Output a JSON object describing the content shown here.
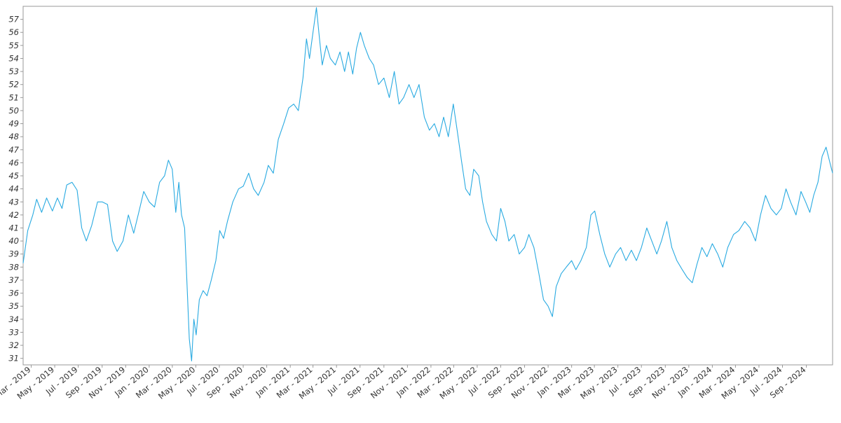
{
  "chart_data": {
    "type": "line",
    "title": "",
    "xlabel": "",
    "ylabel": "",
    "x_range": [
      "2019-02-08",
      "2024-11-08"
    ],
    "ylim": [
      30.5,
      58.0
    ],
    "y_ticks": [
      31,
      32,
      33,
      34,
      35,
      36,
      37,
      38,
      39,
      40,
      41,
      42,
      43,
      44,
      45,
      46,
      47,
      48,
      49,
      50,
      51,
      52,
      53,
      54,
      55,
      56,
      57
    ],
    "x_ticks": [
      {
        "date": "2019-03-01",
        "label": "Mar - 2019"
      },
      {
        "date": "2019-05-01",
        "label": "May - 2019"
      },
      {
        "date": "2019-07-01",
        "label": "Jul - 2019"
      },
      {
        "date": "2019-09-01",
        "label": "Sep - 2019"
      },
      {
        "date": "2019-11-01",
        "label": "Nov - 2019"
      },
      {
        "date": "2020-01-01",
        "label": "Jan - 2020"
      },
      {
        "date": "2020-03-01",
        "label": "Mar - 2020"
      },
      {
        "date": "2020-05-01",
        "label": "May - 2020"
      },
      {
        "date": "2020-07-01",
        "label": "Jul - 2020"
      },
      {
        "date": "2020-09-01",
        "label": "Sep - 2020"
      },
      {
        "date": "2020-11-01",
        "label": "Nov - 2020"
      },
      {
        "date": "2021-01-01",
        "label": "Jan - 2021"
      },
      {
        "date": "2021-03-01",
        "label": "Mar - 2021"
      },
      {
        "date": "2021-05-01",
        "label": "May - 2021"
      },
      {
        "date": "2021-07-01",
        "label": "Jul - 2021"
      },
      {
        "date": "2021-09-01",
        "label": "Sep - 2021"
      },
      {
        "date": "2021-11-01",
        "label": "Nov - 2021"
      },
      {
        "date": "2022-01-01",
        "label": "Jan - 2022"
      },
      {
        "date": "2022-03-01",
        "label": "Mar - 2022"
      },
      {
        "date": "2022-05-01",
        "label": "May - 2022"
      },
      {
        "date": "2022-07-01",
        "label": "Jul - 2022"
      },
      {
        "date": "2022-09-01",
        "label": "Sep - 2022"
      },
      {
        "date": "2022-11-01",
        "label": "Nov - 2022"
      },
      {
        "date": "2023-01-01",
        "label": "Jan - 2023"
      },
      {
        "date": "2023-03-01",
        "label": "Mar - 2023"
      },
      {
        "date": "2023-05-01",
        "label": "May - 2023"
      },
      {
        "date": "2023-07-01",
        "label": "Jul - 2023"
      },
      {
        "date": "2023-09-01",
        "label": "Sep - 2023"
      },
      {
        "date": "2023-11-01",
        "label": "Nov - 2023"
      },
      {
        "date": "2024-01-01",
        "label": "Jan - 2024"
      },
      {
        "date": "2024-03-01",
        "label": "Mar - 2024"
      },
      {
        "date": "2024-05-01",
        "label": "May - 2024"
      },
      {
        "date": "2024-07-01",
        "label": "Jul - 2024"
      },
      {
        "date": "2024-09-01",
        "label": "Sep - 2024"
      }
    ],
    "grid": false,
    "legend": "none",
    "series": [
      {
        "color": "#29aae1",
        "points": [
          [
            "2019-02-08",
            38.3
          ],
          [
            "2019-02-20",
            40.8
          ],
          [
            "2019-03-05",
            42.0
          ],
          [
            "2019-03-15",
            43.2
          ],
          [
            "2019-03-28",
            42.2
          ],
          [
            "2019-04-10",
            43.3
          ],
          [
            "2019-04-25",
            42.3
          ],
          [
            "2019-05-08",
            43.3
          ],
          [
            "2019-05-20",
            42.5
          ],
          [
            "2019-06-01",
            44.3
          ],
          [
            "2019-06-15",
            44.5
          ],
          [
            "2019-06-28",
            43.9
          ],
          [
            "2019-07-10",
            41.0
          ],
          [
            "2019-07-22",
            40.0
          ],
          [
            "2019-08-05",
            41.2
          ],
          [
            "2019-08-20",
            43.0
          ],
          [
            "2019-09-01",
            43.0
          ],
          [
            "2019-09-15",
            42.8
          ],
          [
            "2019-09-28",
            40.0
          ],
          [
            "2019-10-10",
            39.2
          ],
          [
            "2019-10-25",
            40.0
          ],
          [
            "2019-11-08",
            42.0
          ],
          [
            "2019-11-22",
            40.6
          ],
          [
            "2019-12-05",
            42.2
          ],
          [
            "2019-12-18",
            43.8
          ],
          [
            "2020-01-01",
            43.0
          ],
          [
            "2020-01-15",
            42.6
          ],
          [
            "2020-01-28",
            44.5
          ],
          [
            "2020-02-10",
            45.0
          ],
          [
            "2020-02-20",
            46.2
          ],
          [
            "2020-03-01",
            45.5
          ],
          [
            "2020-03-10",
            42.2
          ],
          [
            "2020-03-18",
            44.5
          ],
          [
            "2020-03-25",
            42.0
          ],
          [
            "2020-04-02",
            41.0
          ],
          [
            "2020-04-07",
            37.5
          ],
          [
            "2020-04-14",
            32.5
          ],
          [
            "2020-04-20",
            30.8
          ],
          [
            "2020-04-26",
            34.0
          ],
          [
            "2020-05-02",
            32.8
          ],
          [
            "2020-05-10",
            35.5
          ],
          [
            "2020-05-20",
            36.2
          ],
          [
            "2020-05-30",
            35.8
          ],
          [
            "2020-06-10",
            37.0
          ],
          [
            "2020-06-22",
            38.5
          ],
          [
            "2020-07-02",
            40.8
          ],
          [
            "2020-07-12",
            40.2
          ],
          [
            "2020-07-22",
            41.5
          ],
          [
            "2020-08-05",
            43.0
          ],
          [
            "2020-08-20",
            44.0
          ],
          [
            "2020-09-01",
            44.2
          ],
          [
            "2020-09-15",
            45.2
          ],
          [
            "2020-09-28",
            44.0
          ],
          [
            "2020-10-10",
            43.5
          ],
          [
            "2020-10-25",
            44.5
          ],
          [
            "2020-11-05",
            45.8
          ],
          [
            "2020-11-18",
            45.2
          ],
          [
            "2020-12-01",
            47.8
          ],
          [
            "2020-12-15",
            49.0
          ],
          [
            "2020-12-28",
            50.2
          ],
          [
            "2021-01-10",
            50.5
          ],
          [
            "2021-01-22",
            50.0
          ],
          [
            "2021-02-03",
            52.5
          ],
          [
            "2021-02-12",
            55.5
          ],
          [
            "2021-02-20",
            54.0
          ],
          [
            "2021-03-01",
            56.0
          ],
          [
            "2021-03-10",
            57.9
          ],
          [
            "2021-03-18",
            55.5
          ],
          [
            "2021-03-25",
            53.5
          ],
          [
            "2021-04-05",
            55.0
          ],
          [
            "2021-04-15",
            54.0
          ],
          [
            "2021-04-28",
            53.5
          ],
          [
            "2021-05-10",
            54.5
          ],
          [
            "2021-05-22",
            53.0
          ],
          [
            "2021-06-01",
            54.5
          ],
          [
            "2021-06-12",
            52.8
          ],
          [
            "2021-06-22",
            54.8
          ],
          [
            "2021-07-02",
            56.0
          ],
          [
            "2021-07-12",
            55.0
          ],
          [
            "2021-07-25",
            54.0
          ],
          [
            "2021-08-05",
            53.5
          ],
          [
            "2021-08-18",
            52.0
          ],
          [
            "2021-09-01",
            52.5
          ],
          [
            "2021-09-15",
            51.0
          ],
          [
            "2021-09-28",
            53.0
          ],
          [
            "2021-10-10",
            50.5
          ],
          [
            "2021-10-22",
            51.0
          ],
          [
            "2021-11-05",
            52.0
          ],
          [
            "2021-11-18",
            51.0
          ],
          [
            "2021-12-01",
            52.0
          ],
          [
            "2021-12-15",
            49.5
          ],
          [
            "2021-12-28",
            48.5
          ],
          [
            "2022-01-10",
            49.0
          ],
          [
            "2022-01-22",
            48.0
          ],
          [
            "2022-02-03",
            49.5
          ],
          [
            "2022-02-15",
            48.0
          ],
          [
            "2022-02-28",
            50.5
          ],
          [
            "2022-03-10",
            48.5
          ],
          [
            "2022-03-22",
            46.0
          ],
          [
            "2022-04-01",
            44.0
          ],
          [
            "2022-04-12",
            43.5
          ],
          [
            "2022-04-22",
            45.5
          ],
          [
            "2022-05-05",
            45.0
          ],
          [
            "2022-05-15",
            43.0
          ],
          [
            "2022-05-25",
            41.5
          ],
          [
            "2022-06-08",
            40.5
          ],
          [
            "2022-06-20",
            40.0
          ],
          [
            "2022-07-01",
            42.5
          ],
          [
            "2022-07-12",
            41.5
          ],
          [
            "2022-07-22",
            40.0
          ],
          [
            "2022-08-05",
            40.5
          ],
          [
            "2022-08-18",
            39.0
          ],
          [
            "2022-09-01",
            39.5
          ],
          [
            "2022-09-12",
            40.5
          ],
          [
            "2022-09-25",
            39.5
          ],
          [
            "2022-10-08",
            37.5
          ],
          [
            "2022-10-20",
            35.5
          ],
          [
            "2022-11-01",
            35.0
          ],
          [
            "2022-11-12",
            34.2
          ],
          [
            "2022-11-22",
            36.5
          ],
          [
            "2022-12-05",
            37.5
          ],
          [
            "2022-12-18",
            38.0
          ],
          [
            "2023-01-01",
            38.5
          ],
          [
            "2023-01-12",
            37.8
          ],
          [
            "2023-01-25",
            38.5
          ],
          [
            "2023-02-08",
            39.5
          ],
          [
            "2023-02-20",
            42.0
          ],
          [
            "2023-03-02",
            42.3
          ],
          [
            "2023-03-15",
            40.5
          ],
          [
            "2023-03-28",
            39.0
          ],
          [
            "2023-04-10",
            38.0
          ],
          [
            "2023-04-25",
            39.0
          ],
          [
            "2023-05-08",
            39.5
          ],
          [
            "2023-05-22",
            38.5
          ],
          [
            "2023-06-05",
            39.3
          ],
          [
            "2023-06-18",
            38.5
          ],
          [
            "2023-07-01",
            39.5
          ],
          [
            "2023-07-15",
            41.0
          ],
          [
            "2023-07-28",
            40.0
          ],
          [
            "2023-08-10",
            39.0
          ],
          [
            "2023-08-22",
            40.0
          ],
          [
            "2023-09-05",
            41.5
          ],
          [
            "2023-09-18",
            39.5
          ],
          [
            "2023-10-01",
            38.5
          ],
          [
            "2023-10-15",
            37.8
          ],
          [
            "2023-10-28",
            37.2
          ],
          [
            "2023-11-10",
            36.8
          ],
          [
            "2023-11-22",
            38.2
          ],
          [
            "2023-12-05",
            39.5
          ],
          [
            "2023-12-18",
            38.8
          ],
          [
            "2024-01-01",
            39.8
          ],
          [
            "2024-01-15",
            39.0
          ],
          [
            "2024-01-28",
            38.0
          ],
          [
            "2024-02-10",
            39.5
          ],
          [
            "2024-02-25",
            40.5
          ],
          [
            "2024-03-10",
            40.8
          ],
          [
            "2024-03-25",
            41.5
          ],
          [
            "2024-04-08",
            41.0
          ],
          [
            "2024-04-22",
            40.0
          ],
          [
            "2024-05-05",
            42.0
          ],
          [
            "2024-05-18",
            43.5
          ],
          [
            "2024-06-01",
            42.5
          ],
          [
            "2024-06-15",
            42.0
          ],
          [
            "2024-06-28",
            42.5
          ],
          [
            "2024-07-10",
            44.0
          ],
          [
            "2024-07-22",
            43.0
          ],
          [
            "2024-08-05",
            42.0
          ],
          [
            "2024-08-18",
            43.8
          ],
          [
            "2024-08-30",
            43.0
          ],
          [
            "2024-09-10",
            42.2
          ],
          [
            "2024-09-20",
            43.5
          ],
          [
            "2024-10-01",
            44.5
          ],
          [
            "2024-10-12",
            46.5
          ],
          [
            "2024-10-22",
            47.2
          ],
          [
            "2024-11-01",
            46.0
          ],
          [
            "2024-11-08",
            45.2
          ]
        ]
      }
    ]
  }
}
